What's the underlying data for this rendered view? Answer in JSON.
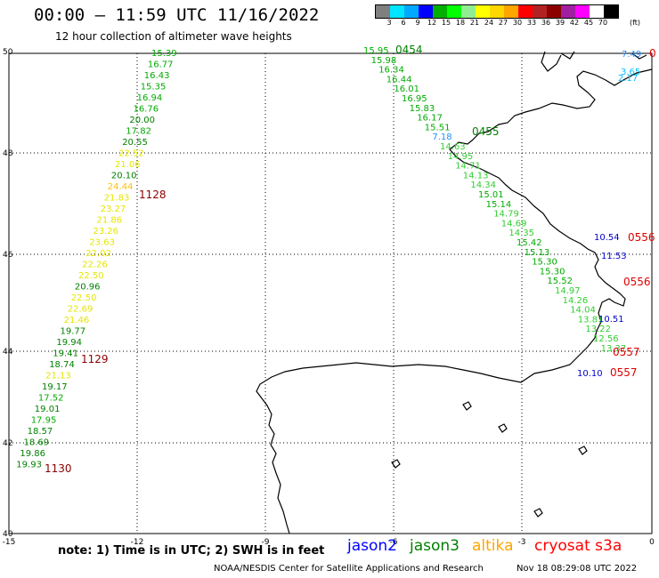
{
  "title": "00:00 – 11:59 UTC 11/16/2022",
  "subtitle": "12 hour collection of altimeter wave heights",
  "colorbar": {
    "colors": [
      "#7f7f7f",
      "#00e5ff",
      "#00a9ff",
      "#0000ff",
      "#00b000",
      "#00ff00",
      "#90ee90",
      "#ffff00",
      "#ffd700",
      "#ffa500",
      "#ff0000",
      "#b22222",
      "#8b0000",
      "#a020a0",
      "#ff00ff",
      "#ffffff",
      "#000000"
    ],
    "labels": [
      "3",
      "6",
      "9",
      "12",
      "15",
      "18",
      "21",
      "24",
      "27",
      "30",
      "33",
      "36",
      "39",
      "42",
      "45",
      "70"
    ],
    "unit": "(ft)"
  },
  "axes": {
    "x_ticks": [
      "-15",
      "-12",
      "-9",
      "-6",
      "-3",
      "0"
    ],
    "y_ticks": [
      "50",
      "48",
      "46",
      "44",
      "42",
      "40"
    ]
  },
  "tracks": [
    {
      "satellite": "jason3",
      "time_labels": [
        {
          "text": "1128",
          "color": "#8b0000"
        },
        {
          "text": "1129",
          "color": "#8b0000"
        },
        {
          "text": "1130",
          "color": "#8b0000"
        }
      ],
      "values": [
        "15.39",
        "16.77",
        "16.43",
        "15.35",
        "16.94",
        "16.76",
        "20.00",
        "17.82",
        "20.55",
        "22.52",
        "21.06",
        "20.10",
        "24.44",
        "21.83",
        "23.27",
        "21.86",
        "23.26",
        "23.63",
        "22.02",
        "22.26",
        "22.50",
        "20.96",
        "22.50",
        "22.69",
        "21.46",
        "19.77",
        "19.94",
        "19.41",
        "18.74",
        "21.13",
        "19.17",
        "17.52",
        "19.01",
        "17.95",
        "18.57",
        "18.69",
        "19.86",
        "19.93"
      ]
    },
    {
      "satellite": "jason3",
      "time_labels": [
        {
          "text": "0454",
          "color": "#008000"
        },
        {
          "text": "0455",
          "color": "#008000"
        }
      ],
      "values": [
        "15.95",
        "15.98",
        "16.34",
        "16.44",
        "16.01",
        "16.95",
        "15.83",
        "16.17",
        "15.51",
        "7.18",
        "14.63",
        "14.95",
        "14.71",
        "14.13",
        "14.34",
        "15.01",
        "15.14",
        "14.79",
        "14.69",
        "14.35",
        "15.42",
        "15.13",
        "15.30",
        "15.30",
        "15.52",
        "14.97",
        "14.26",
        "14.04",
        "13.81",
        "13.22",
        "12.56",
        "13.37"
      ]
    },
    {
      "satellite": "cryosat",
      "time_labels": [
        {
          "text": "0556",
          "color": "#e00000"
        },
        {
          "text": "0556",
          "color": "#e00000"
        },
        {
          "text": "0557",
          "color": "#e00000"
        },
        {
          "text": "0557",
          "color": "#e00000"
        },
        {
          "text": "0",
          "color": "#e00000"
        }
      ],
      "values": [
        "10.54",
        "11.53",
        "10.51",
        "10.10",
        "7.49",
        "3.65",
        "2.17"
      ]
    }
  ],
  "footer": {
    "note": "note:  1) Time is in UTC;  2) SWH is in feet",
    "legend": [
      {
        "name": "jason2",
        "color": "#0000ff"
      },
      {
        "name": "jason3",
        "color": "#008000"
      },
      {
        "name": "altika",
        "color": "#ffa500"
      },
      {
        "name": "cryosat s3a",
        "color": "#ff0000"
      }
    ],
    "credit": "NOAA/NESDIS Center for Satellite Applications and Research",
    "timestamp": "Nov 18 08:29:08 UTC 2022"
  }
}
